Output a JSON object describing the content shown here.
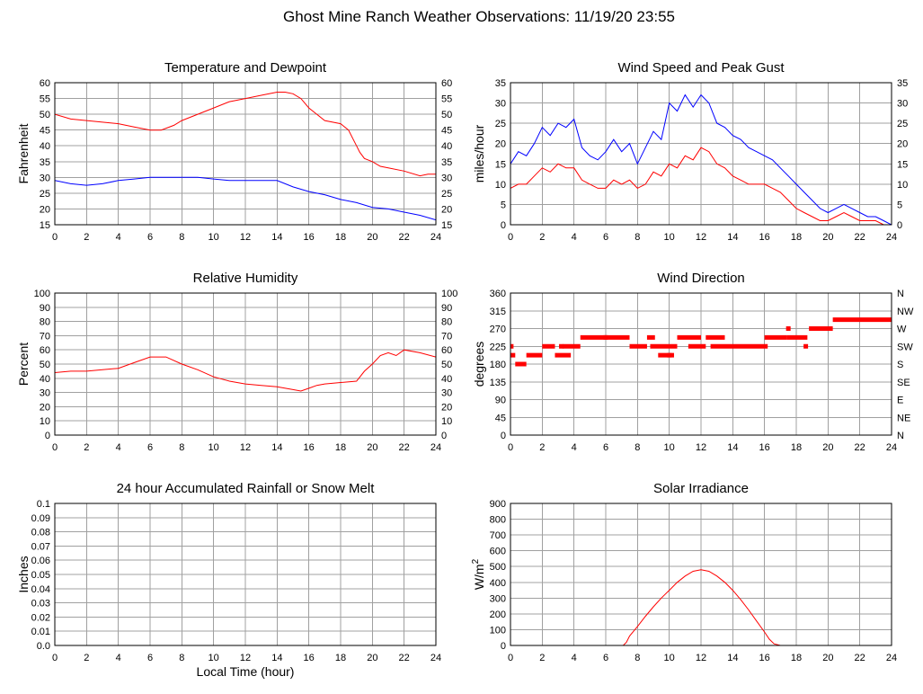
{
  "title": "Ghost Mine Ranch Weather Observations: 11/19/20 23:55",
  "shared_xlabel": "Local Time (hour)",
  "colors": {
    "red": "#ff0000",
    "blue": "#0000ff",
    "grid": "#a0a0a0"
  },
  "chart_data": [
    {
      "id": "temp",
      "type": "line",
      "title": "Temperature and Dewpoint",
      "ylabel": "Fahrenheit",
      "xlim": [
        0,
        24
      ],
      "ylim": [
        15,
        60
      ],
      "xticks": [
        "0",
        "2",
        "4",
        "6",
        "8",
        "10",
        "12",
        "14",
        "16",
        "18",
        "20",
        "22",
        "24"
      ],
      "yticks": [
        "15",
        "20",
        "25",
        "30",
        "35",
        "40",
        "45",
        "50",
        "55",
        "60"
      ],
      "right_ticks": [
        "15",
        "20",
        "25",
        "30",
        "35",
        "40",
        "45",
        "50",
        "55",
        "60"
      ],
      "series": [
        {
          "color": "#ff0000",
          "x": [
            0,
            1,
            2,
            3,
            4,
            5,
            6,
            6.7,
            7.5,
            8,
            9,
            10,
            11,
            12,
            13,
            14,
            14.5,
            15,
            15.5,
            16,
            16.5,
            17,
            18,
            18.5,
            18.8,
            19,
            19.2,
            19.5,
            20,
            20.5,
            21,
            22,
            23,
            23.5,
            24
          ],
          "y": [
            50,
            48.5,
            48,
            47.5,
            47,
            46,
            45,
            45,
            46.5,
            48,
            50,
            52,
            54,
            55,
            56,
            57,
            57,
            56.5,
            55,
            52,
            50,
            48,
            47,
            45,
            42,
            40,
            38,
            36,
            35,
            33.5,
            33,
            32,
            30.5,
            31,
            31
          ]
        },
        {
          "color": "#0000ff",
          "x": [
            0,
            1,
            2,
            3,
            4,
            5,
            6,
            7,
            8,
            9,
            10,
            11,
            12,
            13,
            14,
            15,
            16,
            17,
            18,
            19,
            20,
            21,
            22,
            23,
            24
          ],
          "y": [
            29,
            28,
            27.5,
            28,
            29,
            29.5,
            30,
            30,
            30,
            30,
            29.5,
            29,
            29,
            29,
            29,
            27,
            25.5,
            24.5,
            23,
            22,
            20.5,
            20,
            19,
            18,
            16.5
          ]
        }
      ]
    },
    {
      "id": "wind",
      "type": "line",
      "title": "Wind Speed and Peak Gust",
      "ylabel": "miles/hour",
      "xlim": [
        0,
        24
      ],
      "ylim": [
        0,
        35
      ],
      "xticks": [
        "0",
        "2",
        "4",
        "6",
        "8",
        "10",
        "12",
        "14",
        "16",
        "18",
        "20",
        "22",
        "24"
      ],
      "yticks": [
        "0",
        "5",
        "10",
        "15",
        "20",
        "25",
        "30",
        "35"
      ],
      "right_ticks": [
        "0",
        "5",
        "10",
        "15",
        "20",
        "25",
        "30",
        "35"
      ],
      "series": [
        {
          "color": "#0000ff",
          "x": [
            0,
            0.5,
            1,
            1.5,
            2,
            2.5,
            3,
            3.5,
            4,
            4.5,
            5,
            5.5,
            6,
            6.5,
            7,
            7.5,
            8,
            8.5,
            9,
            9.5,
            10,
            10.5,
            11,
            11.5,
            12,
            12.5,
            13,
            13.5,
            14,
            14.5,
            15,
            15.5,
            16,
            16.5,
            17,
            17.5,
            18,
            18.5,
            19,
            19.5,
            20,
            20.5,
            21,
            21.5,
            22,
            22.5,
            23,
            23.5,
            24
          ],
          "y": [
            15,
            18,
            17,
            20,
            24,
            22,
            25,
            24,
            26,
            19,
            17,
            16,
            18,
            21,
            18,
            20,
            15,
            19,
            23,
            21,
            30,
            28,
            32,
            29,
            32,
            30,
            25,
            24,
            22,
            21,
            19,
            18,
            17,
            16,
            14,
            12,
            10,
            8,
            6,
            4,
            3,
            4,
            5,
            4,
            3,
            2,
            2,
            1,
            0
          ]
        },
        {
          "color": "#ff0000",
          "x": [
            0,
            0.5,
            1,
            1.5,
            2,
            2.5,
            3,
            3.5,
            4,
            4.5,
            5,
            5.5,
            6,
            6.5,
            7,
            7.5,
            8,
            8.5,
            9,
            9.5,
            10,
            10.5,
            11,
            11.5,
            12,
            12.5,
            13,
            13.5,
            14,
            14.5,
            15,
            15.5,
            16,
            16.5,
            17,
            17.5,
            18,
            18.5,
            19,
            19.5,
            20,
            20.5,
            21,
            21.5,
            22,
            22.5,
            23,
            23.5,
            24
          ],
          "y": [
            9,
            10,
            10,
            12,
            14,
            13,
            15,
            14,
            14,
            11,
            10,
            9,
            9,
            11,
            10,
            11,
            9,
            10,
            13,
            12,
            15,
            14,
            17,
            16,
            19,
            18,
            15,
            14,
            12,
            11,
            10,
            10,
            10,
            9,
            8,
            6,
            4,
            3,
            2,
            1,
            1,
            2,
            3,
            2,
            1,
            1,
            1,
            0,
            0
          ]
        }
      ]
    },
    {
      "id": "rh",
      "type": "line",
      "title": "Relative Humidity",
      "ylabel": "Percent",
      "xlim": [
        0,
        24
      ],
      "ylim": [
        0,
        100
      ],
      "xticks": [
        "0",
        "2",
        "4",
        "6",
        "8",
        "10",
        "12",
        "14",
        "16",
        "18",
        "20",
        "22",
        "24"
      ],
      "yticks": [
        "0",
        "10",
        "20",
        "30",
        "40",
        "50",
        "60",
        "70",
        "80",
        "90",
        "100"
      ],
      "right_ticks": [
        "0",
        "10",
        "20",
        "30",
        "40",
        "50",
        "60",
        "70",
        "80",
        "90",
        "100"
      ],
      "series": [
        {
          "color": "#ff0000",
          "x": [
            0,
            1,
            2,
            3,
            4,
            5,
            6,
            7,
            8,
            9,
            10,
            11,
            12,
            13,
            14,
            15,
            15.5,
            16,
            16.5,
            17,
            18,
            19,
            19.5,
            20,
            20.5,
            21,
            21.5,
            22,
            23,
            24
          ],
          "y": [
            44,
            45,
            45,
            46,
            47,
            51,
            55,
            55,
            50,
            46,
            41,
            38,
            36,
            35,
            34,
            32,
            31,
            33,
            35,
            36,
            37,
            38,
            45,
            50,
            56,
            58,
            56,
            60,
            58,
            55
          ]
        }
      ]
    },
    {
      "id": "dir",
      "type": "scatter",
      "title": "Wind Direction",
      "ylabel": "degrees",
      "xlim": [
        0,
        24
      ],
      "ylim": [
        0,
        360
      ],
      "xticks": [
        "0",
        "2",
        "4",
        "6",
        "8",
        "10",
        "12",
        "14",
        "16",
        "18",
        "20",
        "22",
        "24"
      ],
      "yticks": [
        "0",
        "45",
        "90",
        "135",
        "180",
        "225",
        "270",
        "315",
        "360"
      ],
      "right_ticks": [
        "N",
        "NE",
        "E",
        "SE",
        "S",
        "SW",
        "W",
        "NW",
        "N"
      ],
      "segments": [
        {
          "x": [
            0.0,
            0.3
          ],
          "y": 202.5
        },
        {
          "x": [
            0.3,
            1.0
          ],
          "y": 180
        },
        {
          "x": [
            1.0,
            2.0
          ],
          "y": 202.5
        },
        {
          "x": [
            2.0,
            2.8
          ],
          "y": 225
        },
        {
          "x": [
            2.8,
            3.8
          ],
          "y": 202.5
        },
        {
          "x": [
            3.3,
            4.4
          ],
          "y": 225
        },
        {
          "x": [
            4.4,
            7.5
          ],
          "y": 247.5
        },
        {
          "x": [
            7.5,
            8.6
          ],
          "y": 225
        },
        {
          "x": [
            8.6,
            9.1
          ],
          "y": 247.5
        },
        {
          "x": [
            8.8,
            10.5
          ],
          "y": 225
        },
        {
          "x": [
            9.3,
            10.3
          ],
          "y": 202.5
        },
        {
          "x": [
            10.5,
            12.0
          ],
          "y": 247.5
        },
        {
          "x": [
            11.2,
            12.3
          ],
          "y": 225
        },
        {
          "x": [
            12.3,
            13.5
          ],
          "y": 247.5
        },
        {
          "x": [
            12.6,
            16.2
          ],
          "y": 225
        },
        {
          "x": [
            16.0,
            17.4
          ],
          "y": 247.5
        },
        {
          "x": [
            17.4,
            18.7
          ],
          "y": 247.5
        },
        {
          "x": [
            18.8,
            20.3
          ],
          "y": 270
        },
        {
          "x": [
            20.3,
            24.0
          ],
          "y": 292.5
        }
      ],
      "points": [
        {
          "x": 0.05,
          "y": 225
        },
        {
          "x": 3.2,
          "y": 225
        },
        {
          "x": 6.0,
          "y": 247.5
        },
        {
          "x": 10.0,
          "y": 202.5
        },
        {
          "x": 17.5,
          "y": 270
        },
        {
          "x": 18.6,
          "y": 225
        }
      ]
    },
    {
      "id": "rain",
      "type": "line",
      "title": "24 hour Accumulated Rainfall or Snow Melt",
      "ylabel": "Inches",
      "xlabel": "Local Time (hour)",
      "xlim": [
        0,
        24
      ],
      "ylim": [
        0,
        0.1
      ],
      "xticks": [
        "0",
        "2",
        "4",
        "6",
        "8",
        "10",
        "12",
        "14",
        "16",
        "18",
        "20",
        "22",
        "24"
      ],
      "yticks": [
        "0.0",
        "0.01",
        "0.02",
        "0.03",
        "0.04",
        "0.05",
        "0.06",
        "0.07",
        "0.08",
        "0.09",
        "0.1"
      ],
      "series": [
        {
          "color": "#ff0000",
          "x": [
            0,
            24
          ],
          "y": [
            0,
            0
          ]
        }
      ]
    },
    {
      "id": "solar",
      "type": "line",
      "title": "Solar Irradiance",
      "ylabel": "W/m",
      "ylabel_sup": "2",
      "xlim": [
        0,
        24
      ],
      "ylim": [
        0,
        900
      ],
      "xticks": [
        "0",
        "2",
        "4",
        "6",
        "8",
        "10",
        "12",
        "14",
        "16",
        "18",
        "20",
        "22",
        "24"
      ],
      "yticks": [
        "0",
        "100",
        "200",
        "300",
        "400",
        "500",
        "600",
        "700",
        "800",
        "900"
      ],
      "right_ticks": [],
      "series": [
        {
          "color": "#ff0000",
          "x": [
            0,
            7.1,
            7.3,
            7.5,
            8,
            8.5,
            9,
            9.5,
            10,
            10.5,
            11,
            11.5,
            12,
            12.5,
            13,
            13.5,
            14,
            14.5,
            15,
            15.5,
            16,
            16.3,
            16.6,
            17,
            24
          ],
          "y": [
            0,
            0,
            20,
            60,
            120,
            185,
            245,
            300,
            350,
            400,
            440,
            470,
            480,
            470,
            440,
            400,
            350,
            290,
            225,
            155,
            85,
            40,
            10,
            0,
            0
          ]
        }
      ]
    }
  ]
}
